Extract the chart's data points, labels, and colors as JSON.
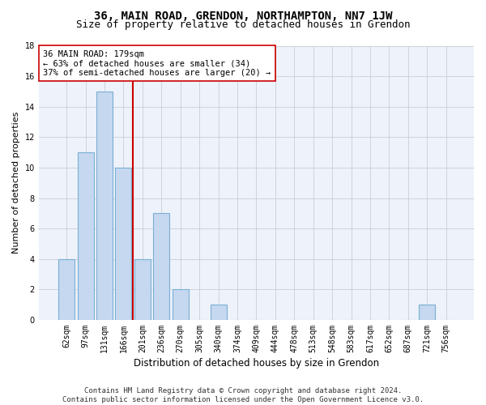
{
  "title1": "36, MAIN ROAD, GRENDON, NORTHAMPTON, NN7 1JW",
  "title2": "Size of property relative to detached houses in Grendon",
  "xlabel": "Distribution of detached houses by size in Grendon",
  "ylabel": "Number of detached properties",
  "categories": [
    "62sqm",
    "97sqm",
    "131sqm",
    "166sqm",
    "201sqm",
    "236sqm",
    "270sqm",
    "305sqm",
    "340sqm",
    "374sqm",
    "409sqm",
    "444sqm",
    "478sqm",
    "513sqm",
    "548sqm",
    "583sqm",
    "617sqm",
    "652sqm",
    "687sqm",
    "721sqm",
    "756sqm"
  ],
  "values": [
    4,
    11,
    15,
    10,
    4,
    7,
    2,
    0,
    1,
    0,
    0,
    0,
    0,
    0,
    0,
    0,
    0,
    0,
    0,
    1,
    0
  ],
  "bar_color": "#c5d8f0",
  "bar_edge_color": "#7aafd4",
  "bar_width": 0.85,
  "vline_x": 3.5,
  "vline_color": "#cc0000",
  "ylim": [
    0,
    18
  ],
  "yticks": [
    0,
    2,
    4,
    6,
    8,
    10,
    12,
    14,
    16,
    18
  ],
  "annotation_line1": "36 MAIN ROAD: 179sqm",
  "annotation_line2": "← 63% of detached houses are smaller (34)",
  "annotation_line3": "37% of semi-detached houses are larger (20) →",
  "annotation_box_color": "#ffffff",
  "annotation_box_edge": "#cc0000",
  "bg_color": "#eef2fa",
  "grid_color": "#c8cdd8",
  "footnote": "Contains HM Land Registry data © Crown copyright and database right 2024.\nContains public sector information licensed under the Open Government Licence v3.0.",
  "title1_fontsize": 10,
  "title2_fontsize": 9,
  "xlabel_fontsize": 8.5,
  "ylabel_fontsize": 8,
  "tick_fontsize": 7,
  "annotation_fontsize": 7.5,
  "footnote_fontsize": 6.5
}
